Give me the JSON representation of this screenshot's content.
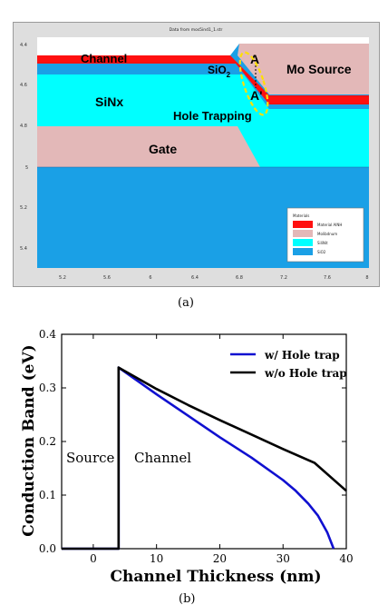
{
  "panel_a": {
    "window_title": "Data from mos5ind1_1.str",
    "y_ticks": [
      "4.4",
      "4.6",
      "4.8",
      "5",
      "5.2",
      "5.4"
    ],
    "x_ticks": [
      "5.2",
      "5.6",
      "6",
      "6.4",
      "6.8",
      "7.2",
      "7.6",
      "8"
    ],
    "labels": {
      "channel": "Channel",
      "sio2": "SiO",
      "sio2_sub": "2",
      "mo_source": "Mo Source",
      "sinx": "SiNx",
      "hole_trapping": "Hole Trapping",
      "gate": "Gate",
      "marker_a": "A",
      "marker_a_prime": "A'"
    },
    "legend": {
      "title": "Materials",
      "items": [
        {
          "label": "Material AlNH",
          "color": "#ff1010"
        },
        {
          "label": "Molibdnum",
          "color": "#e3b8b8"
        },
        {
          "label": "SiliNit",
          "color": "#00ffff"
        },
        {
          "label": "SiO2",
          "color": "#1aa0e6"
        }
      ]
    },
    "colors": {
      "channel": "#ff1010",
      "metal": "#e3b8b8",
      "sinx": "#00ffff",
      "sio2": "#1aa0e6",
      "highlight": "#ffe000"
    }
  },
  "caption_a": "(a)",
  "caption_b": "(b)",
  "chart_data": {
    "type": "line",
    "xlabel": "Channel Thickness (nm)",
    "ylabel": "Conduction Band (eV)",
    "xlim": [
      -5,
      40
    ],
    "ylim": [
      0,
      0.4
    ],
    "x_ticks": [
      0,
      10,
      20,
      30,
      40
    ],
    "y_ticks": [
      0,
      0.1,
      0.2,
      0.3,
      0.4
    ],
    "y_tick_labels": [
      "0.0",
      "0.1",
      "0.2",
      "0.3",
      "0.4"
    ],
    "annotations": [
      "Source",
      "Channel"
    ],
    "legend_position": "top-right",
    "series": [
      {
        "name": "w/ Hole trap",
        "color": "#1010d0",
        "points": [
          [
            -5,
            0
          ],
          [
            4,
            0
          ],
          [
            4,
            0.338
          ],
          [
            10,
            0.288
          ],
          [
            15,
            0.248
          ],
          [
            20,
            0.208
          ],
          [
            25,
            0.17
          ],
          [
            30,
            0.128
          ],
          [
            32,
            0.108
          ],
          [
            34,
            0.084
          ],
          [
            35.5,
            0.062
          ],
          [
            37,
            0.03
          ],
          [
            38,
            0
          ]
        ]
      },
      {
        "name": "w/o Hole trap",
        "color": "#000000",
        "points": [
          [
            -5,
            0
          ],
          [
            4,
            0
          ],
          [
            4,
            0.338
          ],
          [
            10,
            0.298
          ],
          [
            15,
            0.268
          ],
          [
            20,
            0.24
          ],
          [
            25,
            0.213
          ],
          [
            30,
            0.186
          ],
          [
            35,
            0.16
          ],
          [
            40,
            0.108
          ]
        ]
      }
    ]
  }
}
